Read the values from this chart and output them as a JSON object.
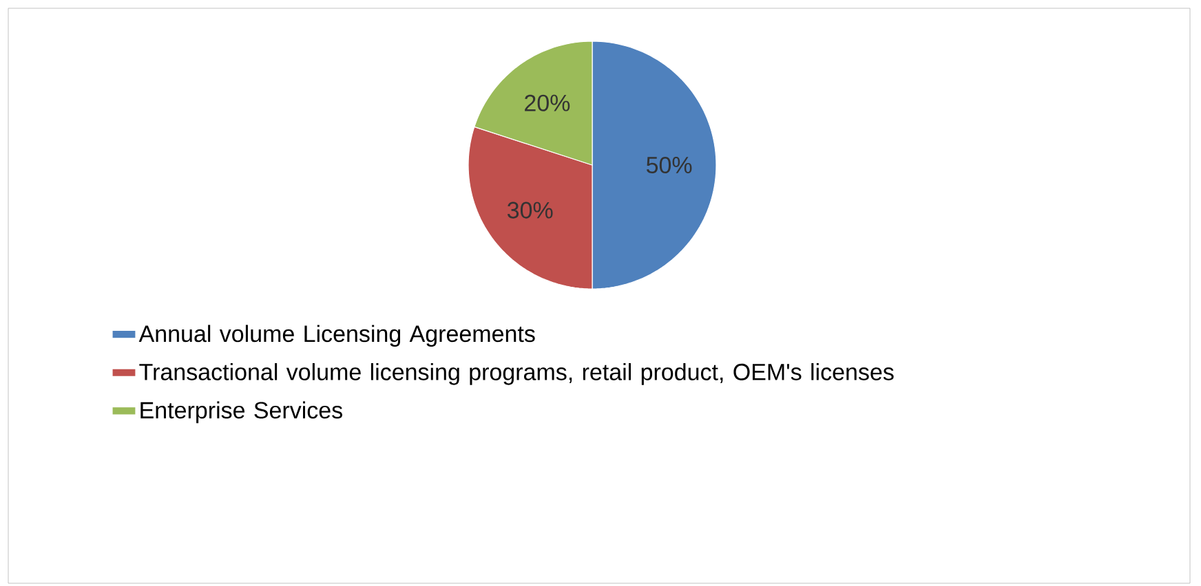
{
  "chart_data": {
    "type": "pie",
    "categories": [
      "Annual volume Licensing Agreements",
      "Transactional volume licensing programs, retail product, OEM's licenses",
      "Enterprise Services"
    ],
    "values": [
      50,
      30,
      20
    ],
    "colors": [
      "#4f81bd",
      "#c0504d",
      "#9bbb59"
    ],
    "value_labels": [
      "50%",
      "30%",
      "20%"
    ],
    "legend": "bottom"
  }
}
